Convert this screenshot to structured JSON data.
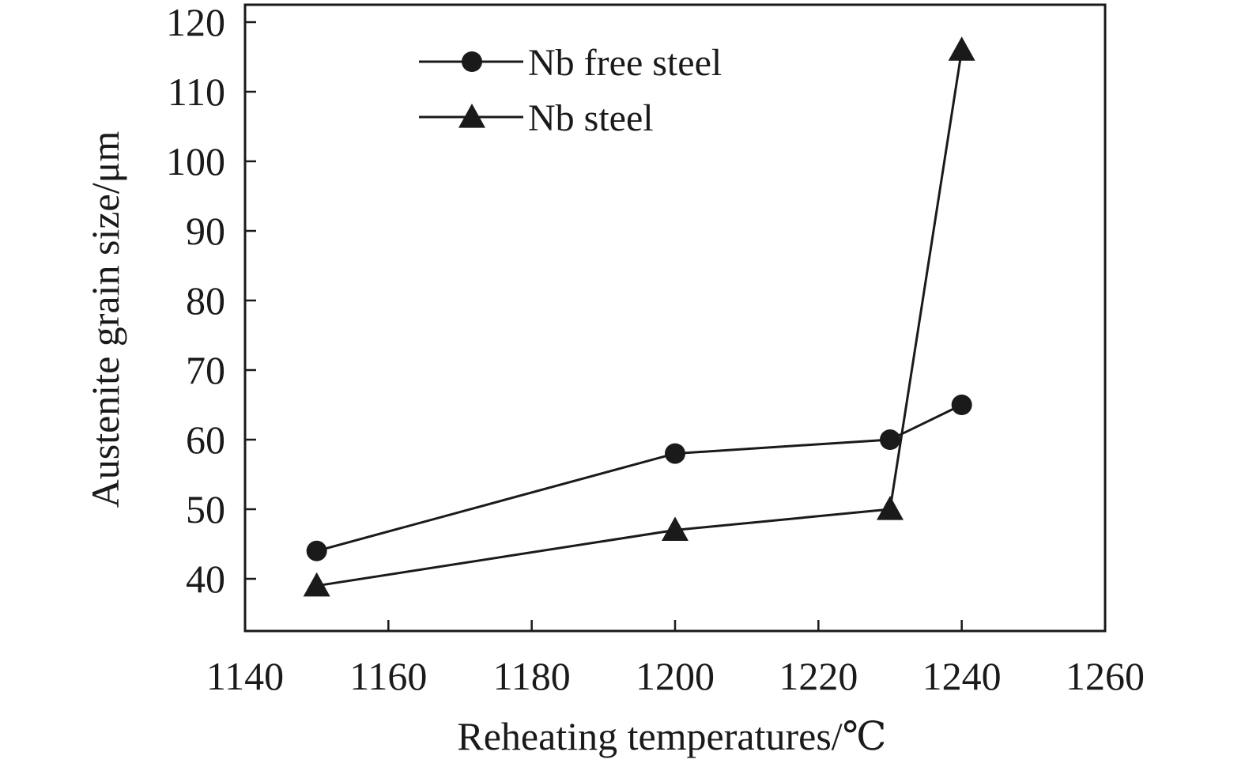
{
  "chart_data": {
    "type": "line",
    "xlabel": "Reheating temperatures/℃",
    "ylabel": "Austenite grain size/μm",
    "xlim": [
      1140,
      1260
    ],
    "ylim": [
      32.5,
      122.5
    ],
    "xticks": [
      1140,
      1160,
      1180,
      1200,
      1220,
      1240,
      1260
    ],
    "yticks": [
      40,
      50,
      60,
      70,
      80,
      90,
      100,
      110,
      120
    ],
    "grid": false,
    "legend_position": "top-left",
    "series": [
      {
        "name": "Nb free steel",
        "marker": "circle",
        "color": "#1a1a1a",
        "x": [
          1150,
          1200,
          1230,
          1240
        ],
        "y": [
          44,
          58,
          60,
          65
        ]
      },
      {
        "name": "Nb steel",
        "marker": "triangle",
        "color": "#1a1a1a",
        "x": [
          1150,
          1200,
          1230,
          1240
        ],
        "y": [
          39,
          47,
          50,
          116
        ]
      }
    ]
  }
}
